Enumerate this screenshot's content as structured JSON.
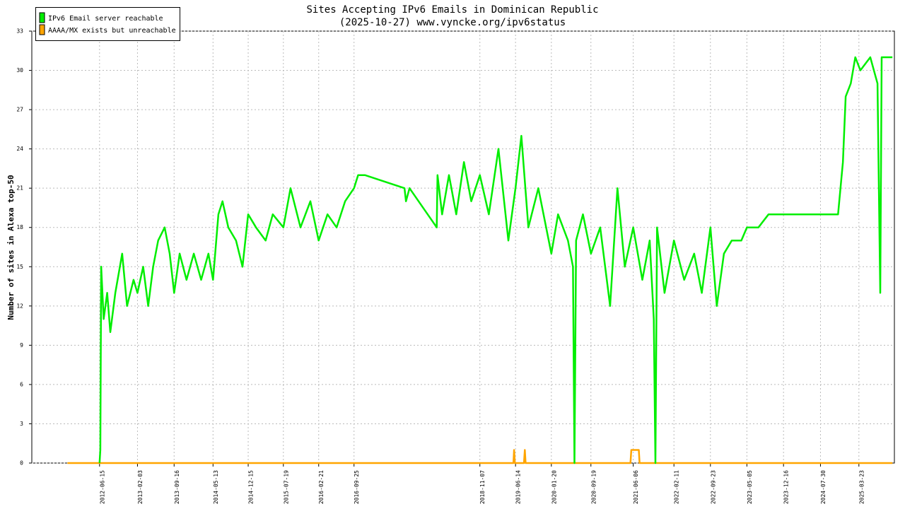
{
  "chart_data": {
    "type": "line",
    "title": "Sites Accepting IPv6 Emails in Dominican Republic",
    "subtitle": "(2025-10-27) www.vyncke.org/ipv6status",
    "y_label": "Number of sites in Alexa top-50",
    "xlim": [
      "2011-04-26",
      "2025-10-27"
    ],
    "xticks": [
      "2012-06-15",
      "2013-02-03",
      "2013-09-16",
      "2014-05-13",
      "2014-12-15",
      "2015-07-19",
      "2016-02-21",
      "2016-09-25",
      "2018-11-07",
      "2019-06-14",
      "2020-01-20",
      "2020-09-19",
      "2021-06-06",
      "2022-02-11",
      "2022-09-23",
      "2023-05-05",
      "2023-12-16",
      "2024-07-30",
      "2025-03-23"
    ],
    "ylim": [
      0,
      33
    ],
    "yticks": [
      0,
      3,
      6,
      9,
      12,
      15,
      18,
      21,
      24,
      27,
      30,
      33
    ],
    "grid": true,
    "legend": "top-left",
    "series": [
      {
        "name": "IPv6 Email server reachable",
        "color": "#00ee00",
        "x": [
          "2012-06-15",
          "2012-06-20",
          "2012-06-25",
          "2012-07-10",
          "2012-08-01",
          "2012-08-20",
          "2012-09-20",
          "2012-11-01",
          "2012-12-01",
          "2013-01-10",
          "2013-02-03",
          "2013-03-10",
          "2013-04-10",
          "2013-05-10",
          "2013-06-10",
          "2013-07-20",
          "2013-08-20",
          "2013-09-16",
          "2013-10-20",
          "2013-12-01",
          "2014-01-15",
          "2014-03-01",
          "2014-04-15",
          "2014-05-13",
          "2014-06-15",
          "2014-07-10",
          "2014-08-15",
          "2014-10-01",
          "2014-11-10",
          "2014-12-15",
          "2015-02-01",
          "2015-04-01",
          "2015-05-15",
          "2015-07-19",
          "2015-09-01",
          "2015-11-01",
          "2016-01-01",
          "2016-02-21",
          "2016-04-15",
          "2016-06-10",
          "2016-08-01",
          "2016-09-25",
          "2016-10-20",
          "2016-12-01",
          "2017-08-01",
          "2017-08-10",
          "2017-09-01",
          "2018-02-15",
          "2018-02-20",
          "2018-03-20",
          "2018-05-01",
          "2018-06-15",
          "2018-08-01",
          "2018-09-15",
          "2018-11-07",
          "2019-01-01",
          "2019-03-01",
          "2019-05-01",
          "2019-06-14",
          "2019-07-20",
          "2019-09-01",
          "2019-11-01",
          "2020-01-20",
          "2020-03-01",
          "2020-05-01",
          "2020-06-01",
          "2020-06-10",
          "2020-06-20",
          "2020-08-01",
          "2020-09-19",
          "2020-11-15",
          "2021-01-15",
          "2021-03-01",
          "2021-04-15",
          "2021-06-06",
          "2021-08-01",
          "2021-09-15",
          "2021-10-10",
          "2021-10-20",
          "2021-10-30",
          "2021-12-15",
          "2022-02-11",
          "2022-04-15",
          "2022-06-15",
          "2022-08-01",
          "2022-09-23",
          "2022-11-01",
          "2022-12-15",
          "2023-02-01",
          "2023-04-01",
          "2023-05-05",
          "2023-07-15",
          "2023-09-15",
          "2024-11-15",
          "2024-12-15",
          "2025-01-01",
          "2025-02-01",
          "2025-03-01",
          "2025-04-01",
          "2025-06-01",
          "2025-07-15",
          "2025-08-01",
          "2025-08-10",
          "2025-10-15"
        ],
        "values": [
          0,
          1,
          15,
          11,
          13,
          10,
          13,
          16,
          12,
          14,
          13,
          15,
          12,
          15,
          17,
          18,
          16,
          13,
          16,
          14,
          16,
          14,
          16,
          14,
          19,
          20,
          18,
          17,
          15,
          19,
          18,
          17,
          19,
          18,
          21,
          18,
          20,
          17,
          19,
          18,
          20,
          21,
          22,
          22,
          21,
          20,
          21,
          18,
          22,
          19,
          22,
          19,
          23,
          20,
          22,
          19,
          24,
          17,
          21,
          25,
          18,
          21,
          16,
          19,
          17,
          15,
          0,
          17,
          19,
          16,
          18,
          12,
          21,
          15,
          18,
          14,
          17,
          11,
          0,
          18,
          13,
          17,
          14,
          16,
          13,
          18,
          12,
          16,
          17,
          17,
          18,
          18,
          19,
          19,
          23,
          28,
          29,
          31,
          30,
          31,
          29,
          13,
          31,
          31
        ]
      },
      {
        "name": "AAAA/MX exists but unreachable",
        "color": "#ffa500",
        "x": [
          "2011-12-01",
          "2019-06-01",
          "2019-06-05",
          "2019-06-10",
          "2019-08-05",
          "2019-08-10",
          "2019-08-15",
          "2021-05-20",
          "2021-05-25",
          "2021-07-10",
          "2021-07-15",
          "2025-10-15"
        ],
        "values": [
          0,
          0,
          1,
          0,
          0,
          1,
          0,
          0,
          1,
          1,
          0,
          0
        ]
      }
    ]
  }
}
